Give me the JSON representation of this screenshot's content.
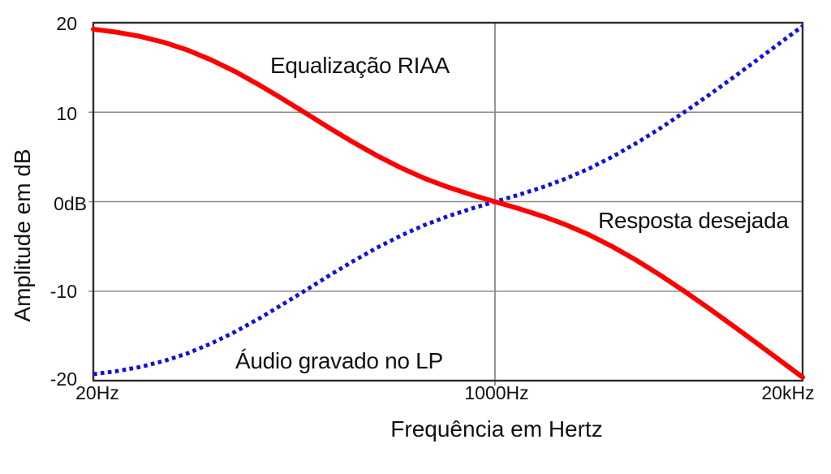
{
  "chart_data": {
    "type": "line",
    "xlabel": "Frequência em Hertz",
    "ylabel": "Amplitude em dB",
    "x_scale": "log",
    "xlim_hz": [
      20,
      20000
    ],
    "ylim_db": [
      -20,
      20
    ],
    "grid": {
      "horizontal_at_db": [
        10,
        0,
        -10
      ],
      "vertical_at_hz": [
        1000
      ]
    },
    "x_ticks": [
      {
        "hz": 20,
        "label": "20Hz"
      },
      {
        "hz": 1000,
        "label": "1000Hz"
      },
      {
        "hz": 20000,
        "label": "20kHz"
      }
    ],
    "y_ticks": [
      {
        "db": 20,
        "label": "20"
      },
      {
        "db": 10,
        "label": "10"
      },
      {
        "db": 0,
        "label": "0dB"
      },
      {
        "db": -10,
        "label": "-10"
      },
      {
        "db": -20,
        "label": "-20"
      }
    ],
    "colors": {
      "riaa_curve": "#ff0000",
      "lp_curve": "#1111dd",
      "grid_line": "#8a8a8a",
      "frame": "#2d2d2d",
      "text": "#111111",
      "background": "#ffffff"
    },
    "annotations": {
      "riaa": {
        "text": "Equalização RIAA"
      },
      "desired": {
        "text": "Resposta desejada"
      },
      "lp": {
        "text": "Áudio gravado no LP"
      }
    },
    "series": [
      {
        "name": "Equalização RIAA",
        "color": "#ff0000",
        "line_style": "solid",
        "points": [
          [
            20,
            19.27
          ],
          [
            25,
            18.95
          ],
          [
            31.5,
            18.48
          ],
          [
            40,
            17.79
          ],
          [
            50,
            16.95
          ],
          [
            63,
            15.85
          ],
          [
            80,
            14.51
          ],
          [
            100,
            13.09
          ],
          [
            125,
            11.56
          ],
          [
            160,
            9.81
          ],
          [
            200,
            8.22
          ],
          [
            250,
            6.68
          ],
          [
            315,
            5.18
          ],
          [
            400,
            3.79
          ],
          [
            500,
            2.64
          ],
          [
            630,
            1.64
          ],
          [
            800,
            0.75
          ],
          [
            1000,
            0
          ],
          [
            1250,
            -0.74
          ],
          [
            1600,
            -1.64
          ],
          [
            2000,
            -2.59
          ],
          [
            2500,
            -3.7
          ],
          [
            3150,
            -5.04
          ],
          [
            4000,
            -6.61
          ],
          [
            5000,
            -8.21
          ],
          [
            6300,
            -9.98
          ],
          [
            8000,
            -11.89
          ],
          [
            10000,
            -13.73
          ],
          [
            12500,
            -15.61
          ],
          [
            16000,
            -17.71
          ],
          [
            20000,
            -19.62
          ]
        ]
      },
      {
        "name": "Áudio gravado no LP",
        "color": "#1111dd",
        "line_style": "dotted",
        "points": [
          [
            20,
            -19.27
          ],
          [
            25,
            -18.95
          ],
          [
            31.5,
            -18.48
          ],
          [
            40,
            -17.79
          ],
          [
            50,
            -16.95
          ],
          [
            63,
            -15.85
          ],
          [
            80,
            -14.51
          ],
          [
            100,
            -13.09
          ],
          [
            125,
            -11.56
          ],
          [
            160,
            -9.81
          ],
          [
            200,
            -8.22
          ],
          [
            250,
            -6.68
          ],
          [
            315,
            -5.18
          ],
          [
            400,
            -3.79
          ],
          [
            500,
            -2.64
          ],
          [
            630,
            -1.64
          ],
          [
            800,
            -0.75
          ],
          [
            1000,
            0
          ],
          [
            1250,
            0.74
          ],
          [
            1600,
            1.64
          ],
          [
            2000,
            2.59
          ],
          [
            2500,
            3.7
          ],
          [
            3150,
            5.04
          ],
          [
            4000,
            6.61
          ],
          [
            5000,
            8.21
          ],
          [
            6300,
            9.98
          ],
          [
            8000,
            11.89
          ],
          [
            10000,
            13.73
          ],
          [
            12500,
            15.61
          ],
          [
            16000,
            17.71
          ],
          [
            20000,
            19.62
          ]
        ]
      }
    ]
  }
}
